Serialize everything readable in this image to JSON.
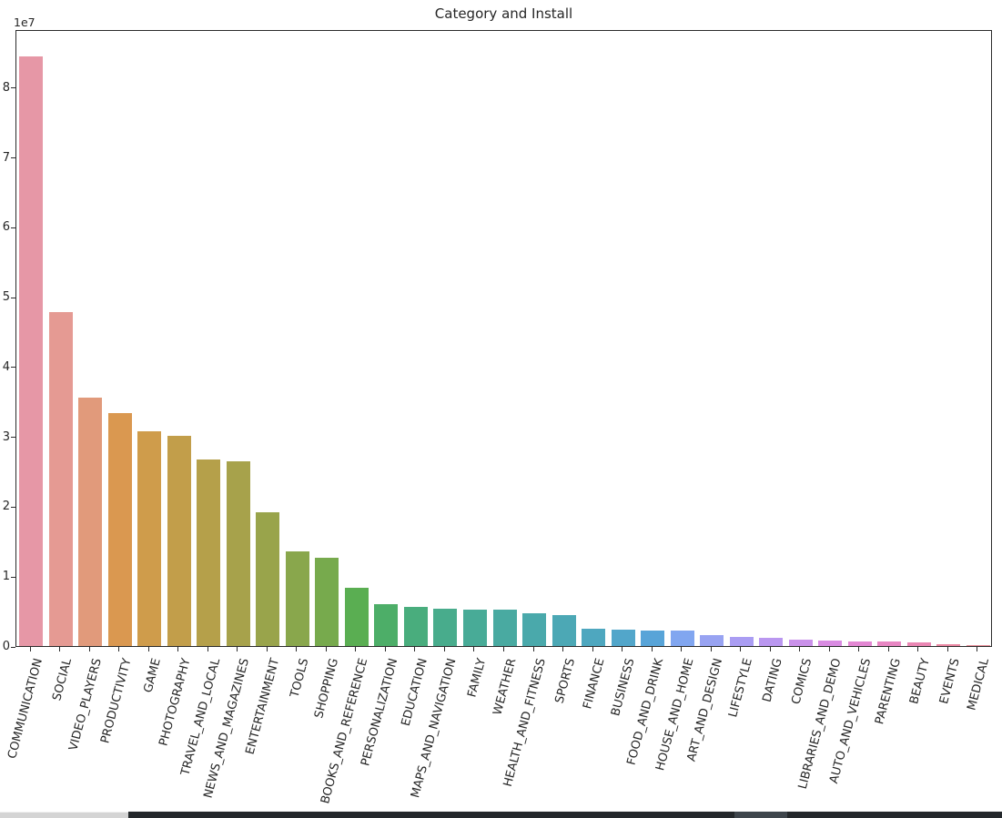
{
  "chart_data": {
    "type": "bar",
    "title": "Category and Install",
    "xlabel": "",
    "ylabel": "",
    "y_offset_label": "1e7",
    "y_ticks": [
      0,
      1,
      2,
      3,
      4,
      5,
      6,
      7,
      8
    ],
    "y_tick_unit": 10000000,
    "ylim": [
      0,
      88300000
    ],
    "grid": false,
    "legend_position": "none",
    "x_tick_rotation_deg": 75,
    "axis_color": "#2b2b2b",
    "text_color": "#262626",
    "categories": [
      "COMMUNICATION",
      "SOCIAL",
      "VIDEO_PLAYERS",
      "PRODUCTIVITY",
      "GAME",
      "PHOTOGRAPHY",
      "TRAVEL_AND_LOCAL",
      "NEWS_AND_MAGAZINES",
      "ENTERTAINMENT",
      "TOOLS",
      "SHOPPING",
      "BOOKS_AND_REFERENCE",
      "PERSONALIZATION",
      "EDUCATION",
      "MAPS_AND_NAVIGATION",
      "FAMILY",
      "WEATHER",
      "HEALTH_AND_FITNESS",
      "SPORTS",
      "FINANCE",
      "BUSINESS",
      "FOOD_AND_DRINK",
      "HOUSE_AND_HOME",
      "ART_AND_DESIGN",
      "LIFESTYLE",
      "DATING",
      "COMICS",
      "LIBRARIES_AND_DEMO",
      "AUTO_AND_VEHICLES",
      "PARENTING",
      "BEAUTY",
      "EVENTS",
      "MEDICAL"
    ],
    "values": [
      84400000,
      47800000,
      35500000,
      33400000,
      30800000,
      30100000,
      26700000,
      26500000,
      19200000,
      13600000,
      12600000,
      8300000,
      6000000,
      5600000,
      5300000,
      5200000,
      5150000,
      4700000,
      4400000,
      2500000,
      2350000,
      2200000,
      2150000,
      1600000,
      1300000,
      1150000,
      950000,
      770000,
      710000,
      620000,
      480000,
      240000,
      120000
    ],
    "bar_colors": [
      "#e697a6",
      "#e59a93",
      "#e19a7b",
      "#da9850",
      "#cf9c4b",
      "#c29e4a",
      "#b5a04a",
      "#a7a24b",
      "#99a44b",
      "#89a74c",
      "#77aa4d",
      "#5aae52",
      "#4dae68",
      "#49ad7d",
      "#48ac8c",
      "#48ab97",
      "#49aaa1",
      "#4aa9ab",
      "#4ca8b5",
      "#4ea7bf",
      "#52a6ca",
      "#58a4d8",
      "#81a6f0",
      "#98a3f2",
      "#aa9df3",
      "#ba97f0",
      "#ca91ea",
      "#d98be2",
      "#e387d3",
      "#e886c3",
      "#ea86b3",
      "#eb87a3",
      "#e78f99"
    ]
  },
  "bottom_strip": {
    "light_segment_color": "#d4d4d4",
    "bar_color": "#24282b",
    "highlight_color": "#3f464c"
  }
}
